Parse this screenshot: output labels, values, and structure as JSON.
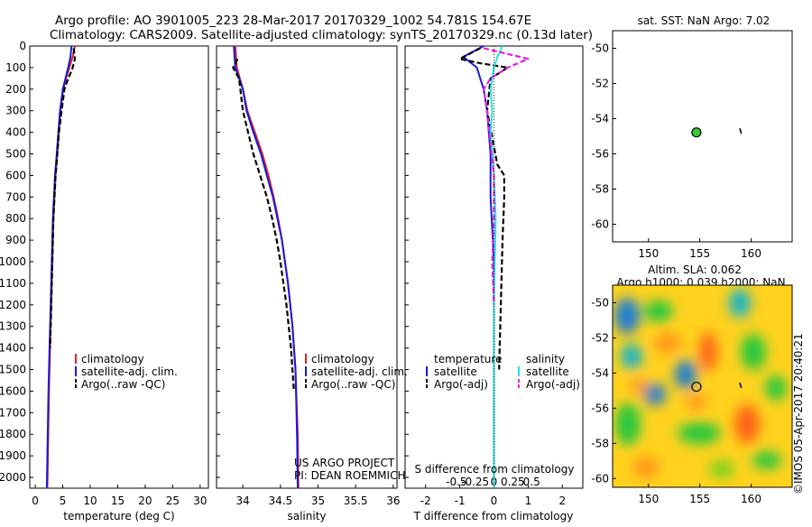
{
  "header": {
    "line1": "Argo profile: AO 3901005_223 28-Mar-2017 20170329_1002 54.781S 154.67E",
    "line2": "Climatology: CARS2009. Satellite-adjusted climatology: synTS_20170329.nc (0.13d later)"
  },
  "colors": {
    "climatology": "#dd2222",
    "satellite": "#1a1adc",
    "argo": "#000000",
    "cyan": "#22e6e6",
    "magenta": "#e61ee6",
    "argo_dot": "#33cc33"
  },
  "chart_data": [
    {
      "type": "line",
      "name": "temperature-profile",
      "xlabel": "temperature (deg C)",
      "xlim": [
        -1,
        31.5
      ],
      "ylim": [
        2050,
        0
      ],
      "xticks": [
        0,
        5,
        10,
        15,
        20,
        25,
        30
      ],
      "yticks": [
        0,
        100,
        200,
        300,
        400,
        500,
        600,
        700,
        800,
        900,
        1000,
        1100,
        1200,
        1300,
        1400,
        1500,
        1600,
        1700,
        1800,
        1900,
        2000
      ],
      "legend": [
        "climatology",
        "satellite-adj. clim.",
        "Argo(..raw -QC)"
      ],
      "series": [
        {
          "name": "climatology",
          "color": "#dd2222",
          "style": "solid",
          "x": [
            7.2,
            6.8,
            6.2,
            5.6,
            5.1,
            4.6,
            4.3,
            4.0,
            3.7,
            3.5,
            3.3,
            3.1,
            2.9,
            2.7,
            2.5,
            2.3,
            2.2
          ],
          "y": [
            0,
            50,
            100,
            150,
            200,
            300,
            400,
            500,
            600,
            700,
            800,
            1000,
            1200,
            1400,
            1600,
            1900,
            2050
          ]
        },
        {
          "name": "satellite-adj. clim.",
          "color": "#1a1adc",
          "style": "solid",
          "x": [
            6.6,
            6.4,
            6.0,
            5.5,
            5.0,
            4.5,
            4.2,
            3.9,
            3.6,
            3.4,
            3.2,
            3.0,
            2.8,
            2.6,
            2.4,
            2.2,
            2.1
          ],
          "y": [
            0,
            50,
            100,
            150,
            200,
            300,
            400,
            500,
            600,
            700,
            800,
            1000,
            1200,
            1400,
            1600,
            1900,
            2050
          ]
        },
        {
          "name": "Argo(..raw -QC)",
          "color": "#000000",
          "style": "dashed",
          "x": [
            7.0,
            7.2,
            6.7,
            6.0,
            5.3,
            4.8,
            4.3,
            4.0,
            3.7,
            3.5,
            3.3,
            3.1,
            2.9,
            2.7
          ],
          "y": [
            10,
            60,
            110,
            150,
            200,
            300,
            400,
            500,
            600,
            700,
            800,
            1000,
            1200,
            1400
          ]
        }
      ]
    },
    {
      "type": "line",
      "name": "salinity-profile",
      "xlabel": "salinity",
      "xlim": [
        33.65,
        36.05
      ],
      "ylim": [
        2050,
        0
      ],
      "xticks": [
        34,
        34.5,
        35,
        35.5,
        36
      ],
      "legend": [
        "climatology",
        "satellite-adj. clim.",
        "Argo(..raw -QC)"
      ],
      "annotation": [
        "US ARGO PROJECT",
        "PI: DEAN ROEMMICH"
      ],
      "series": [
        {
          "name": "climatology",
          "color": "#dd2222",
          "style": "solid",
          "x": [
            33.9,
            33.92,
            34.0,
            34.06,
            34.16,
            34.26,
            34.34,
            34.41,
            34.47,
            34.52,
            34.6,
            34.66,
            34.7,
            34.73,
            34.74
          ],
          "y": [
            0,
            100,
            200,
            300,
            400,
            500,
            600,
            700,
            800,
            900,
            1100,
            1300,
            1500,
            1800,
            2050
          ]
        },
        {
          "name": "satellite-adj. clim.",
          "color": "#1a1adc",
          "style": "solid",
          "x": [
            33.88,
            33.9,
            34.0,
            34.05,
            34.14,
            34.24,
            34.32,
            34.4,
            34.46,
            34.52,
            34.6,
            34.66,
            34.7,
            34.72,
            34.73
          ],
          "y": [
            0,
            100,
            200,
            300,
            400,
            500,
            600,
            700,
            800,
            900,
            1100,
            1300,
            1500,
            1800,
            2050
          ]
        },
        {
          "name": "Argo(..raw -QC)",
          "color": "#000000",
          "style": "dashed",
          "x": [
            33.93,
            33.87,
            33.95,
            34.0,
            34.07,
            34.14,
            34.23,
            34.32,
            34.39,
            34.45,
            34.5,
            34.58,
            34.64,
            34.68
          ],
          "y": [
            60,
            100,
            150,
            300,
            400,
            500,
            600,
            700,
            800,
            900,
            1000,
            1200,
            1400,
            1600
          ]
        }
      ]
    },
    {
      "type": "line",
      "name": "difference-from-climatology",
      "xlabel": "T difference from climatology",
      "xlim": [
        -2.6,
        2.6
      ],
      "ylim": [
        2050,
        0
      ],
      "xticks": [
        -2,
        -1,
        0,
        1,
        2
      ],
      "top_xlabel": "S difference from climatology",
      "top_xticks": [
        "-0.5",
        "-0.25",
        "0",
        "0.25",
        "0.5"
      ],
      "legend_groups": [
        {
          "title": "temperature",
          "items": [
            "satellite",
            "Argo(-adj)"
          ]
        },
        {
          "title": "salinity",
          "items": [
            "satellite",
            "Argo(-adj)"
          ]
        }
      ],
      "series": [
        {
          "name": "satellite",
          "group": "temperature",
          "color": "#1a1adc",
          "style": "solid",
          "x": [
            -0.3,
            -0.9,
            -0.5,
            -0.4,
            -0.3,
            -0.2,
            -0.1,
            -0.1,
            0,
            0,
            0
          ],
          "y": [
            0,
            50,
            100,
            150,
            200,
            300,
            500,
            700,
            1000,
            1500,
            2050
          ]
        },
        {
          "name": "Argo(-adj)",
          "group": "temperature",
          "color": "#000000",
          "style": "dashed",
          "x": [
            -0.4,
            -1.0,
            -0.4,
            0.4,
            -0.1,
            -0.2,
            0.1,
            0.3,
            0.3,
            0.25,
            0.2,
            0.15
          ],
          "y": [
            10,
            60,
            80,
            100,
            150,
            300,
            550,
            600,
            700,
            900,
            1200,
            1500
          ]
        },
        {
          "name": "satellite",
          "group": "salinity",
          "color": "#22e6e6",
          "style": "solid",
          "x": [
            0.25,
            0.1,
            0.0,
            -0.1,
            -0.05,
            -0.1,
            0.0,
            0.05,
            0.0,
            0.0
          ],
          "y": [
            0,
            50,
            100,
            200,
            300,
            400,
            600,
            800,
            1200,
            2050
          ]
        },
        {
          "name": "Argo(-adj)",
          "group": "salinity",
          "color": "#e61ee6",
          "style": "dashed",
          "x": [
            -0.3,
            1.0,
            0.4,
            -0.1,
            -0.3,
            -0.2,
            -0.1,
            0.0,
            0.0,
            -0.05,
            0.0
          ],
          "y": [
            10,
            60,
            100,
            150,
            200,
            300,
            450,
            600,
            800,
            1000,
            1200
          ]
        }
      ]
    },
    {
      "type": "scatter",
      "name": "sst-map",
      "title": "sat. SST: NaN Argo: 7.02",
      "xlim": [
        146.5,
        164
      ],
      "ylim": [
        -61,
        -49
      ],
      "xticks": [
        150,
        155,
        160
      ],
      "yticks": [
        -50,
        -52,
        -54,
        -56,
        -58,
        -60
      ],
      "points": [
        {
          "x": 154.67,
          "y": -54.78
        }
      ],
      "track": [
        [
          158.9,
          -54.55
        ],
        [
          159.05,
          -54.85
        ]
      ]
    },
    {
      "type": "heatmap",
      "name": "sla-map",
      "title": "Altim. SLA: 0.062",
      "subtitle": "Argo h1000: 0.039 h2000: NaN",
      "xlim": [
        146.5,
        164
      ],
      "ylim": [
        -60.5,
        -49
      ],
      "xticks": [
        150,
        155,
        160
      ],
      "yticks": [
        -50,
        -52,
        -54,
        -56,
        -58,
        -60
      ],
      "points": [
        {
          "x": 154.67,
          "y": -54.78
        }
      ],
      "track": [
        [
          158.9,
          -54.55
        ],
        [
          159.05,
          -54.85
        ]
      ]
    }
  ],
  "footer": {
    "stamp": "©IMOS 05-Apr-2017 20:40:21"
  }
}
